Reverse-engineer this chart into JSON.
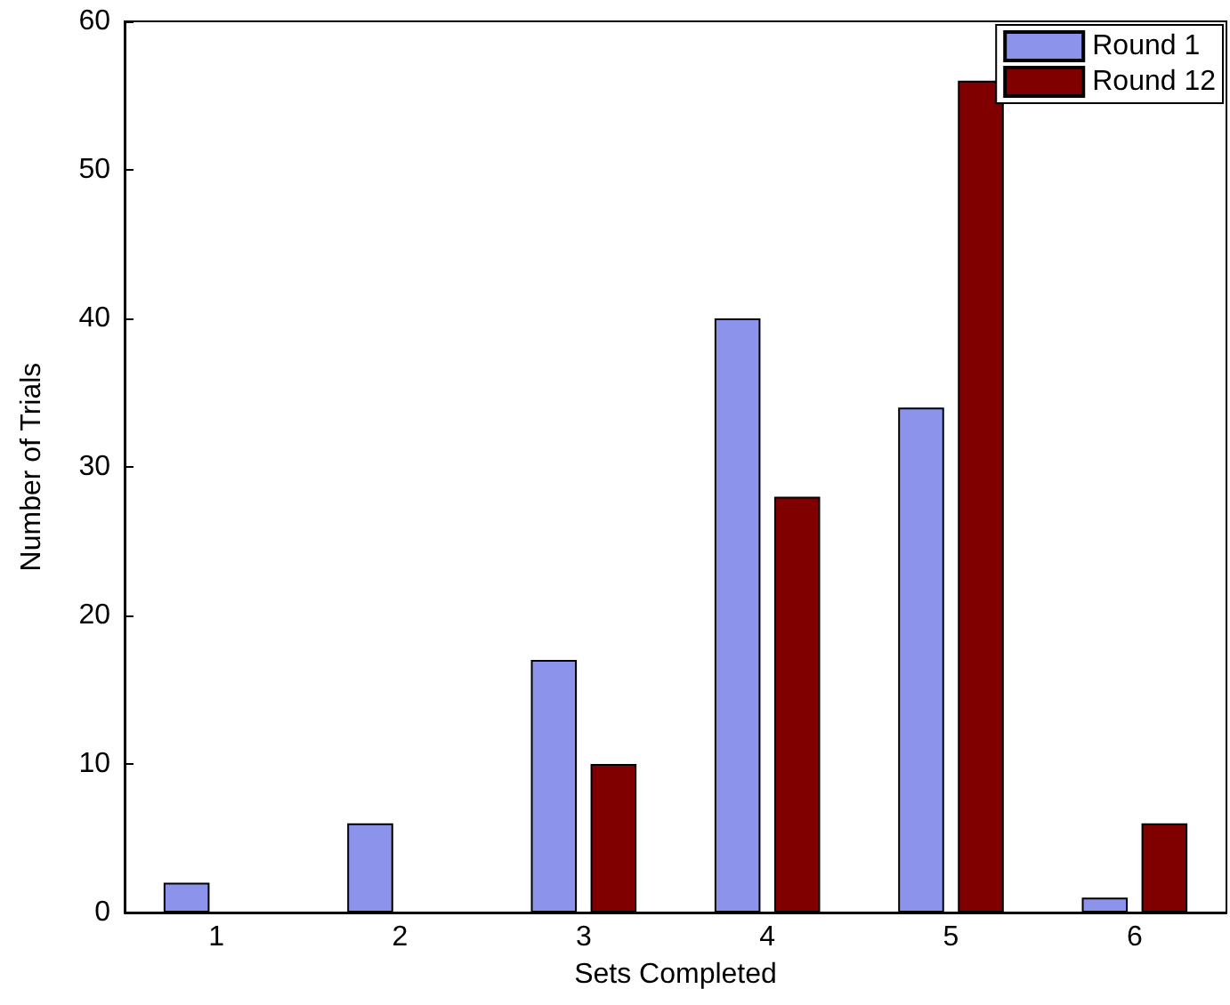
{
  "chart_data": {
    "type": "bar",
    "xlabel": "Sets Completed",
    "ylabel": "Number of Trials",
    "categories": [
      "1",
      "2",
      "3",
      "4",
      "5",
      "6"
    ],
    "series": [
      {
        "name": "Round 1",
        "color": "#8b93eb",
        "values": [
          2,
          6,
          17,
          40,
          34,
          1
        ]
      },
      {
        "name": "Round 12",
        "color": "#800000",
        "values": [
          0,
          0,
          10,
          28,
          56,
          6
        ]
      }
    ],
    "ylim": [
      0,
      60
    ],
    "yticks": [
      0,
      10,
      20,
      30,
      40,
      50,
      60
    ],
    "grid": false,
    "legend": "top right"
  }
}
